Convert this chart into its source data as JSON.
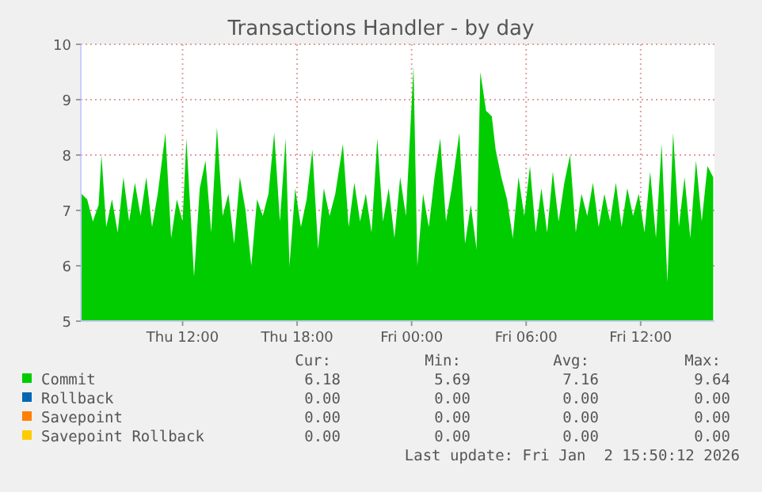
{
  "chart_data": {
    "type": "area",
    "title": "Transactions Handler - by day",
    "x": [
      "2026-01-01T06:42",
      "2026-01-01T07:00",
      "2026-01-01T07:18",
      "2026-01-01T07:36",
      "2026-01-01T07:45",
      "2026-01-01T08:00",
      "2026-01-01T08:18",
      "2026-01-01T08:36",
      "2026-01-01T08:54",
      "2026-01-01T09:12",
      "2026-01-01T09:30",
      "2026-01-01T09:48",
      "2026-01-01T10:06",
      "2026-01-01T10:24",
      "2026-01-01T10:42",
      "2026-01-01T11:06",
      "2026-01-01T11:24",
      "2026-01-01T11:42",
      "2026-01-01T12:00",
      "2026-01-01T12:12",
      "2026-01-01T12:36",
      "2026-01-01T12:54",
      "2026-01-01T13:12",
      "2026-01-01T13:30",
      "2026-01-01T13:48",
      "2026-01-01T14:06",
      "2026-01-01T14:24",
      "2026-01-01T14:42",
      "2026-01-01T15:00",
      "2026-01-01T15:18",
      "2026-01-01T15:36",
      "2026-01-01T15:54",
      "2026-01-01T16:12",
      "2026-01-01T16:30",
      "2026-01-01T16:48",
      "2026-01-01T17:06",
      "2026-01-01T17:24",
      "2026-01-01T17:36",
      "2026-01-01T17:54",
      "2026-01-01T18:12",
      "2026-01-01T18:30",
      "2026-01-01T18:48",
      "2026-01-01T19:06",
      "2026-01-01T19:24",
      "2026-01-01T19:42",
      "2026-01-01T20:00",
      "2026-01-01T20:24",
      "2026-01-01T20:42",
      "2026-01-01T21:00",
      "2026-01-01T21:18",
      "2026-01-01T21:36",
      "2026-01-01T21:54",
      "2026-01-01T22:12",
      "2026-01-01T22:30",
      "2026-01-01T22:48",
      "2026-01-01T23:06",
      "2026-01-01T23:24",
      "2026-01-01T23:42",
      "2026-01-02T00:06",
      "2026-01-02T00:18",
      "2026-01-02T00:36",
      "2026-01-02T00:54",
      "2026-01-02T01:12",
      "2026-01-02T01:30",
      "2026-01-02T01:48",
      "2026-01-02T02:06",
      "2026-01-02T02:30",
      "2026-01-02T02:48",
      "2026-01-02T03:06",
      "2026-01-02T03:24",
      "2026-01-02T03:36",
      "2026-01-02T03:54",
      "2026-01-02T04:12",
      "2026-01-02T04:24",
      "2026-01-02T04:42",
      "2026-01-02T05:00",
      "2026-01-02T05:18",
      "2026-01-02T05:36",
      "2026-01-02T05:54",
      "2026-01-02T06:12",
      "2026-01-02T06:30",
      "2026-01-02T06:48",
      "2026-01-02T07:06",
      "2026-01-02T07:24",
      "2026-01-02T07:42",
      "2026-01-02T08:00",
      "2026-01-02T08:18",
      "2026-01-02T08:36",
      "2026-01-02T08:54",
      "2026-01-02T09:12",
      "2026-01-02T09:30",
      "2026-01-02T09:48",
      "2026-01-02T10:06",
      "2026-01-02T10:24",
      "2026-01-02T10:42",
      "2026-01-02T11:00",
      "2026-01-02T11:18",
      "2026-01-02T11:36",
      "2026-01-02T11:54",
      "2026-01-02T12:12",
      "2026-01-02T12:30",
      "2026-01-02T12:48",
      "2026-01-02T13:06",
      "2026-01-02T13:24",
      "2026-01-02T13:42",
      "2026-01-02T14:00",
      "2026-01-02T14:18",
      "2026-01-02T14:36",
      "2026-01-02T14:54",
      "2026-01-02T15:12",
      "2026-01-02T15:30",
      "2026-01-02T15:48"
    ],
    "series": [
      {
        "name": "Commit",
        "color": "#00cc00",
        "values": [
          7.3,
          7.2,
          6.8,
          7.1,
          8.0,
          6.7,
          7.2,
          6.6,
          7.6,
          6.8,
          7.5,
          6.9,
          7.6,
          6.7,
          7.3,
          8.4,
          6.5,
          7.2,
          6.8,
          8.3,
          5.8,
          7.4,
          7.9,
          6.6,
          8.5,
          6.9,
          7.3,
          6.4,
          7.6,
          7.0,
          6.0,
          7.2,
          6.9,
          7.3,
          8.4,
          6.8,
          8.3,
          6.0,
          7.4,
          6.7,
          7.2,
          8.1,
          6.3,
          7.4,
          6.9,
          7.3,
          8.2,
          6.7,
          7.5,
          6.8,
          7.3,
          6.6,
          8.3,
          6.8,
          7.4,
          6.5,
          7.6,
          6.9,
          9.6,
          6.0,
          7.3,
          6.7,
          7.6,
          8.3,
          6.8,
          7.4,
          8.4,
          6.4,
          7.1,
          6.3,
          9.5,
          8.8,
          8.7,
          8.1,
          7.6,
          7.2,
          6.5,
          7.6,
          6.9,
          7.8,
          6.6,
          7.4,
          6.6,
          7.7,
          6.8,
          7.5,
          8.0,
          6.6,
          7.3,
          6.9,
          7.5,
          6.7,
          7.3,
          6.8,
          7.5,
          6.7,
          7.4,
          6.9,
          7.3,
          6.6,
          7.7,
          6.5,
          8.2,
          5.7,
          8.4,
          6.7,
          7.6,
          6.5,
          7.9,
          6.8,
          7.8,
          7.6
        ]
      },
      {
        "name": "Rollback",
        "color": "#0066b3",
        "values": [
          null,
          null,
          null,
          null,
          null,
          null,
          null,
          null,
          null,
          null,
          null,
          null,
          null,
          null,
          null,
          null,
          null,
          null,
          null,
          null,
          null,
          null,
          null,
          null,
          null,
          null,
          null,
          null,
          null,
          null,
          null,
          null,
          null,
          null,
          null,
          null,
          null,
          null,
          null,
          null,
          null,
          null,
          null,
          null,
          null,
          null,
          null,
          null,
          null,
          null,
          null,
          null,
          null,
          null,
          null,
          null,
          null,
          null,
          null,
          null,
          null,
          null,
          null,
          null,
          null,
          null,
          null,
          null,
          null,
          null,
          null,
          null,
          null,
          null,
          null,
          null,
          null,
          null,
          null,
          null,
          null,
          null,
          null,
          null,
          null,
          null,
          null,
          null,
          null,
          null,
          null,
          null,
          null,
          null,
          null,
          null,
          null,
          null,
          null,
          null,
          null,
          null,
          null,
          null,
          null,
          null,
          null,
          null,
          null,
          null,
          null,
          null
        ]
      },
      {
        "name": "Savepoint",
        "color": "#ff8000",
        "values": [
          null,
          null,
          null,
          null,
          null,
          null,
          null,
          null,
          null,
          null,
          null,
          null,
          null,
          null,
          null,
          null,
          null,
          null,
          null,
          null,
          null,
          null,
          null,
          null,
          null,
          null,
          null,
          null,
          null,
          null,
          null,
          null,
          null,
          null,
          null,
          null,
          null,
          null,
          null,
          null,
          null,
          null,
          null,
          null,
          null,
          null,
          null,
          null,
          null,
          null,
          null,
          null,
          null,
          null,
          null,
          null,
          null,
          null,
          null,
          null,
          null,
          null,
          null,
          null,
          null,
          null,
          null,
          null,
          null,
          null,
          null,
          null,
          null,
          null,
          null,
          null,
          null,
          null,
          null,
          null,
          null,
          null,
          null,
          null,
          null,
          null,
          null,
          null,
          null,
          null,
          null,
          null,
          null,
          null,
          null,
          null,
          null,
          null,
          null,
          null,
          null,
          null,
          null,
          null,
          null,
          null,
          null,
          null,
          null,
          null,
          null,
          null
        ]
      },
      {
        "name": "Savepoint Rollback",
        "color": "#ffcc00",
        "values": [
          null,
          null,
          null,
          null,
          null,
          null,
          null,
          null,
          null,
          null,
          null,
          null,
          null,
          null,
          null,
          null,
          null,
          null,
          null,
          null,
          null,
          null,
          null,
          null,
          null,
          null,
          null,
          null,
          null,
          null,
          null,
          null,
          null,
          null,
          null,
          null,
          null,
          null,
          null,
          null,
          null,
          null,
          null,
          null,
          null,
          null,
          null,
          null,
          null,
          null,
          null,
          null,
          null,
          null,
          null,
          null,
          null,
          null,
          null,
          null,
          null,
          null,
          null,
          null,
          null,
          null,
          null,
          null,
          null,
          null,
          null,
          null,
          null,
          null,
          null,
          null,
          null,
          null,
          null,
          null,
          null,
          null,
          null,
          null,
          null,
          null,
          null,
          null,
          null,
          null,
          null,
          null,
          null,
          null,
          null,
          null,
          null,
          null,
          null,
          null,
          null,
          null,
          null,
          null,
          null,
          null,
          null,
          null,
          null,
          null,
          null,
          null
        ]
      }
    ],
    "xlim": [
      "2026-01-01T06:40",
      "2026-01-02T15:52"
    ],
    "xticks": [
      {
        "value": "2026-01-01T12:00",
        "label": "Thu 12:00"
      },
      {
        "value": "2026-01-01T18:00",
        "label": "Thu 18:00"
      },
      {
        "value": "2026-01-02T00:00",
        "label": "Fri 00:00"
      },
      {
        "value": "2026-01-02T06:00",
        "label": "Fri 06:00"
      },
      {
        "value": "2026-01-02T12:00",
        "label": "Fri 12:00"
      }
    ],
    "ylim": [
      5,
      10
    ],
    "yticks": [
      5,
      6,
      7,
      8,
      9,
      10
    ],
    "grid": true,
    "legend": "bottom",
    "annotations": [
      "Cur:",
      "Min:",
      "Avg:",
      "Max:",
      "6.18",
      "5.69",
      "7.16",
      "9.64",
      "0.00",
      "0.00",
      "0.00",
      "0.00",
      "0.00",
      "0.00",
      "0.00",
      "0.00",
      "0.00",
      "0.00",
      "0.00",
      "0.00",
      "Last update: Fri Jan  2 15:50:12 2026"
    ]
  }
}
